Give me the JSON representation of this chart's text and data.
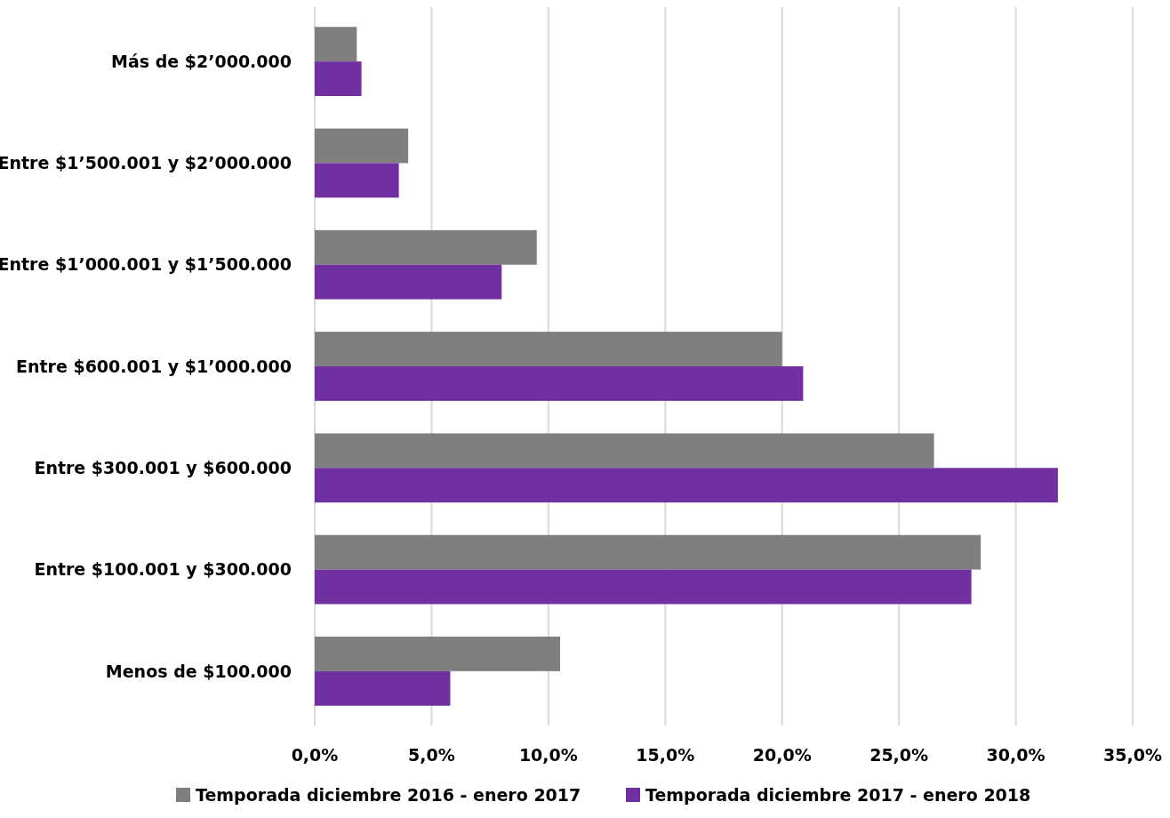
{
  "chart_data": {
    "type": "bar",
    "orientation": "horizontal",
    "categories": [
      "Más de $2’000.000",
      "Entre $1’500.001 y $2’000.000",
      "Entre $1’000.001 y $1’500.000",
      "Entre $600.001 y $1’000.000",
      "Entre $300.001 y $600.000",
      "Entre $100.001 y $300.000",
      "Menos de $100.000"
    ],
    "series": [
      {
        "name": "Temporada diciembre 2016 - enero 2017",
        "color": "#7f7f7f",
        "values": [
          1.8,
          4.0,
          9.5,
          20.0,
          26.5,
          28.5,
          10.5
        ]
      },
      {
        "name": "Temporada diciembre 2017 - enero 2018",
        "color": "#7030a0",
        "values": [
          2.0,
          3.6,
          8.0,
          20.9,
          31.8,
          28.1,
          5.8
        ]
      }
    ],
    "xlim": [
      0,
      35
    ],
    "xticks": [
      {
        "value": 0,
        "label": "0,0%"
      },
      {
        "value": 5,
        "label": "5,0%"
      },
      {
        "value": 10,
        "label": "10,0%"
      },
      {
        "value": 15,
        "label": "15,0%"
      },
      {
        "value": 20,
        "label": "20,0%"
      },
      {
        "value": 25,
        "label": "25,0%"
      },
      {
        "value": 30,
        "label": "30,0%"
      },
      {
        "value": 35,
        "label": "35,0%"
      }
    ],
    "grid": "x",
    "legend": "bottom"
  }
}
